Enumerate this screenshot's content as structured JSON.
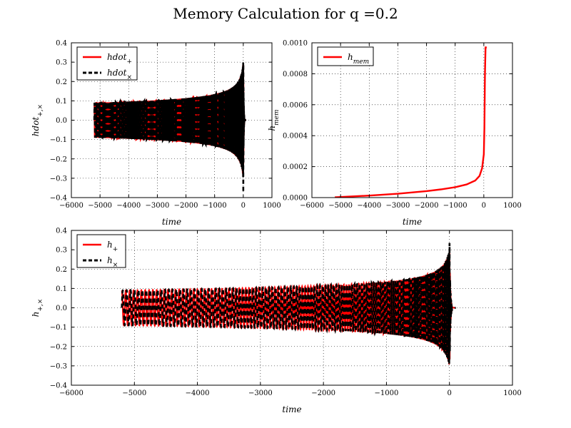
{
  "figure": {
    "title": "Memory Calculation for q =0.2"
  },
  "colors": {
    "plus": "#ff0000",
    "cross": "#000000"
  },
  "chart_data": [
    {
      "type": "line",
      "id": "hdot",
      "xlabel": "time",
      "ylabel": {
        "base": "hdot",
        "sub": "+,×"
      },
      "xlim": [
        -6000,
        1000
      ],
      "ylim": [
        -0.4,
        0.4
      ],
      "xticks": [
        -6000,
        -5000,
        -4000,
        -3000,
        -2000,
        -1000,
        0,
        1000
      ],
      "yticks": [
        -0.4,
        -0.3,
        -0.2,
        -0.1,
        0.0,
        0.1,
        0.2,
        0.3,
        0.4
      ],
      "xtick_labels": [
        "−6000",
        "−5000",
        "−4000",
        "−3000",
        "−2000",
        "−1000",
        "0",
        "1000"
      ],
      "ytick_labels": [
        "−0.4",
        "−0.3",
        "−0.2",
        "−0.1",
        "0.0",
        "0.1",
        "0.2",
        "0.3",
        "0.4"
      ],
      "grid": true,
      "legend": "top-left",
      "signal": {
        "t_start": -5200,
        "t_merger": 0,
        "t_end": 100,
        "amp_start": 0.09,
        "amp_peak": 0.38,
        "kind": "hdot"
      },
      "series": [
        {
          "name": "hdot",
          "sub": "+",
          "style": "solid"
        },
        {
          "name": "hdot",
          "sub": "×",
          "style": "dashed"
        }
      ]
    },
    {
      "type": "line",
      "id": "hmem",
      "xlabel": "time",
      "ylabel": {
        "base": "h",
        "sub": "mem"
      },
      "xlim": [
        -6000,
        1000
      ],
      "ylim": [
        0,
        0.001
      ],
      "xticks": [
        -6000,
        -5000,
        -4000,
        -3000,
        -2000,
        -1000,
        0,
        1000
      ],
      "yticks": [
        0,
        0.0002,
        0.0004,
        0.0006,
        0.0008,
        0.001
      ],
      "xtick_labels": [
        "−6000",
        "−5000",
        "−4000",
        "−3000",
        "−2000",
        "−1000",
        "0",
        "1000"
      ],
      "ytick_labels": [
        "0.0000",
        "0.0002",
        "0.0004",
        "0.0006",
        "0.0008",
        "0.0010"
      ],
      "grid": true,
      "legend": "top-left",
      "series": [
        {
          "name": "h",
          "sub": "mem",
          "style": "solid",
          "x": [
            -5200,
            -4000,
            -3000,
            -2000,
            -1500,
            -1000,
            -600,
            -300,
            -150,
            -60,
            0,
            20,
            40,
            60,
            100
          ],
          "y": [
            2e-06,
            1.3e-05,
            2.5e-05,
            4.2e-05,
            5.3e-05,
            6.7e-05,
            8.5e-05,
            0.00011,
            0.00014,
            0.00019,
            0.00028,
            0.00045,
            0.0008,
            0.00097,
            0.00097
          ]
        }
      ]
    },
    {
      "type": "line",
      "id": "h",
      "xlabel": "time",
      "ylabel": {
        "base": "h",
        "sub": "+,×"
      },
      "xlim": [
        -6000,
        1000
      ],
      "ylim": [
        -0.4,
        0.4
      ],
      "xticks": [
        -6000,
        -5000,
        -4000,
        -3000,
        -2000,
        -1000,
        0,
        1000
      ],
      "yticks": [
        -0.4,
        -0.3,
        -0.2,
        -0.1,
        0.0,
        0.1,
        0.2,
        0.3,
        0.4
      ],
      "xtick_labels": [
        "−6000",
        "−5000",
        "−4000",
        "−3000",
        "−2000",
        "−1000",
        "0",
        "1000"
      ],
      "ytick_labels": [
        "−0.4",
        "−0.3",
        "−0.2",
        "−0.1",
        "0.0",
        "0.1",
        "0.2",
        "0.3",
        "0.4"
      ],
      "grid": true,
      "legend": "top-left",
      "signal": {
        "t_start": -5200,
        "t_merger": 0,
        "t_end": 100,
        "amp_start": 0.09,
        "amp_peak": 0.38,
        "kind": "h"
      },
      "series": [
        {
          "name": "h",
          "sub": "+",
          "style": "solid"
        },
        {
          "name": "h",
          "sub": "×",
          "style": "dashed"
        }
      ]
    }
  ]
}
